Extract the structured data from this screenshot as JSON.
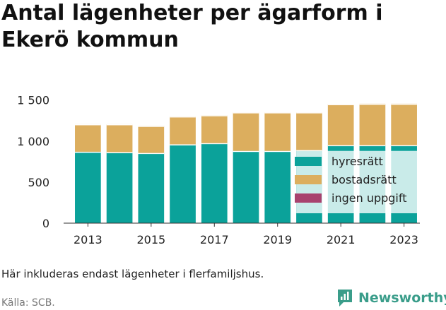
{
  "title": "Antal lägenheter per ägarform i Ekerö kommun",
  "note": "Här inkluderas endast lägenheter i flerfamiljshus.",
  "source": "Källa: SCB.",
  "brand": {
    "name": "Newsworthy",
    "icon": "bar-chart-speech-bubble-icon",
    "color": "#3a9d8a"
  },
  "chart_data": {
    "type": "bar",
    "stacked": true,
    "categories": [
      "2013",
      "2014",
      "2015",
      "2016",
      "2017",
      "2018",
      "2019",
      "2020",
      "2021",
      "2022",
      "2023"
    ],
    "x_tick_labels": [
      "2013",
      "2015",
      "2017",
      "2019",
      "2021",
      "2023"
    ],
    "y_tick_labels": [
      "0",
      "500",
      "1 000",
      "1 500"
    ],
    "y_ticks": [
      0,
      500,
      1000,
      1500
    ],
    "ylim": [
      0,
      1600
    ],
    "grid": false,
    "legend_position": "inside-right",
    "series": [
      {
        "name": "hyresrätt",
        "color": "#0ba29a",
        "values": [
          870,
          865,
          855,
          960,
          975,
          880,
          880,
          890,
          950,
          950,
          950
        ]
      },
      {
        "name": "bostadsrätt",
        "color": "#dcae5e",
        "values": [
          335,
          340,
          330,
          340,
          340,
          470,
          470,
          460,
          500,
          505,
          505
        ]
      },
      {
        "name": "ingen uppgift",
        "color": "#a8426e",
        "values": [
          0,
          0,
          0,
          0,
          0,
          0,
          0,
          0,
          0,
          0,
          0
        ]
      }
    ],
    "legend_overlay_bg": "#ffffff",
    "legend_overlay_opacity": 0.78
  }
}
